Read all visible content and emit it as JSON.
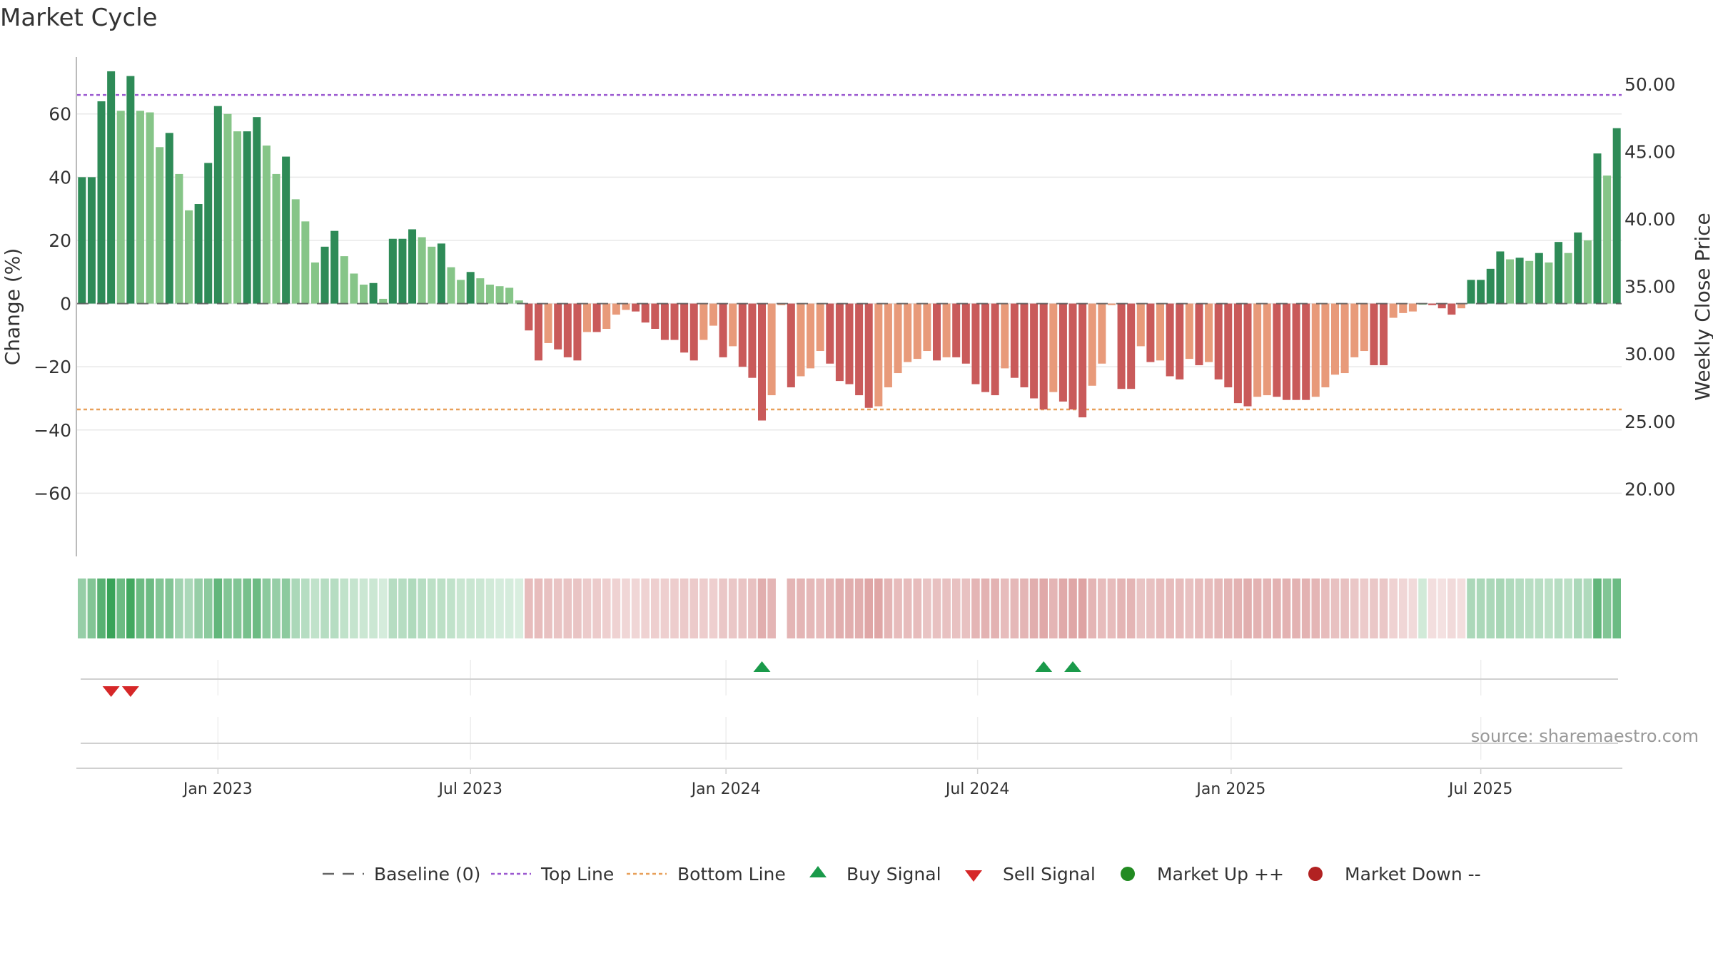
{
  "chart_data": {
    "type": "bar",
    "title": "Market Cycle",
    "ylabel": "Change (%)",
    "y2label": "Weekly Close Price",
    "ylim": [
      -80,
      78
    ],
    "y2lim": [
      15,
      52
    ],
    "yticks": [
      -60,
      -40,
      -20,
      0,
      20,
      40,
      60
    ],
    "y2ticks": [
      20,
      25,
      30,
      35,
      40,
      45,
      50
    ],
    "ytick_labels": [
      "−60",
      "−40",
      "−20",
      "0",
      "20",
      "40",
      "60"
    ],
    "y2tick_labels": [
      "20.00",
      "25.00",
      "30.00",
      "35.00",
      "40.00",
      "45.00",
      "50.00"
    ],
    "xtick_labels": [
      "Jan 2023",
      "Jul 2023",
      "Jan 2024",
      "Jul 2024",
      "Jan 2025",
      "Jul 2025"
    ],
    "xtick_weeks": [
      14,
      40,
      66.3,
      92.2,
      118.3,
      144
    ],
    "top_line": 66,
    "bottom_line": -33.5,
    "values": [
      40,
      40,
      64,
      73.5,
      61,
      72,
      61,
      60.5,
      49.5,
      54,
      41,
      29.5,
      31.5,
      44.5,
      62.5,
      60,
      54.5,
      54.5,
      59,
      50,
      41,
      46.5,
      33,
      26,
      13,
      18,
      23,
      15,
      9.5,
      6,
      6.5,
      1.5,
      20.5,
      20.5,
      23.5,
      21,
      18,
      19,
      11.5,
      7.5,
      10,
      8,
      6,
      5.5,
      5,
      1,
      -8.5,
      -18,
      -12.5,
      -14.5,
      -17,
      -18,
      -9,
      -9,
      -8,
      -3.5,
      -2,
      -2.5,
      -6,
      -8,
      -11.5,
      -11.5,
      -15.5,
      -18,
      -11.5,
      -7,
      -17,
      -13.5,
      -20,
      -23.5,
      -37,
      -29,
      -0.5,
      -26.5,
      -23,
      -20.5,
      -15,
      -19,
      -24.5,
      -25.5,
      -29,
      -33,
      -32.5,
      -26.5,
      -22,
      -18.5,
      -17.5,
      -15,
      -18,
      -17,
      -17,
      -19,
      -25.5,
      -28,
      -29,
      -20.5,
      -23.5,
      -26.5,
      -30,
      -33.5,
      -28,
      -31,
      -33.5,
      -36,
      -26,
      -19,
      -0.5,
      -27,
      -27,
      -13.5,
      -18.5,
      -18,
      -23,
      -24,
      -17.5,
      -19.5,
      -18.5,
      -24,
      -26.5,
      -31.5,
      -32.5,
      -29.5,
      -29,
      -29.5,
      -30.5,
      -30.5,
      -30.5,
      -29.5,
      -26.5,
      -22.5,
      -22,
      -17,
      -15,
      -19.5,
      -19.5,
      -4.5,
      -3,
      -2.5,
      0,
      -0.5,
      -1.5,
      -3.5,
      -1.5,
      7.5,
      7.5,
      11,
      16.5,
      14,
      14.5,
      13.5,
      16,
      13,
      19.5,
      16,
      22.5,
      20,
      47.5,
      40.5,
      55.5
    ],
    "strength_band": [
      0.5,
      0.6,
      0.8,
      0.95,
      0.7,
      0.9,
      0.7,
      0.7,
      0.6,
      0.6,
      0.45,
      0.4,
      0.5,
      0.55,
      0.75,
      0.6,
      0.6,
      0.65,
      0.7,
      0.55,
      0.5,
      0.55,
      0.4,
      0.35,
      0.3,
      0.35,
      0.35,
      0.3,
      0.28,
      0.25,
      0.25,
      0.2,
      0.35,
      0.35,
      0.38,
      0.35,
      0.32,
      0.32,
      0.3,
      0.26,
      0.26,
      0.25,
      0.22,
      0.2,
      0.2,
      0.18,
      0.45,
      0.45,
      0.42,
      0.4,
      0.4,
      0.4,
      0.35,
      0.35,
      0.32,
      0.3,
      0.28,
      0.28,
      0.3,
      0.32,
      0.32,
      0.34,
      0.36,
      0.36,
      0.34,
      0.32,
      0.38,
      0.38,
      0.4,
      0.42,
      0.55,
      0.5,
      null,
      0.5,
      0.5,
      0.48,
      0.45,
      0.5,
      0.55,
      0.55,
      0.55,
      0.6,
      0.6,
      0.5,
      0.45,
      0.45,
      0.45,
      0.4,
      0.42,
      0.42,
      0.42,
      0.42,
      0.5,
      0.52,
      0.52,
      0.45,
      0.48,
      0.5,
      0.55,
      0.58,
      0.5,
      0.58,
      0.6,
      0.62,
      0.5,
      0.45,
      0.45,
      0.5,
      0.5,
      0.4,
      0.42,
      0.45,
      0.45,
      0.45,
      0.42,
      0.45,
      0.45,
      0.48,
      0.5,
      0.52,
      0.55,
      0.52,
      0.5,
      0.52,
      0.52,
      0.52,
      0.52,
      0.5,
      0.45,
      0.42,
      0.42,
      0.38,
      0.35,
      0.38,
      0.38,
      0.3,
      0.28,
      0.25,
      0.22,
      0.22,
      0.2,
      0.25,
      0.22,
      0.4,
      0.4,
      0.4,
      0.42,
      0.38,
      0.36,
      0.34,
      0.34,
      0.32,
      0.35,
      0.32,
      0.4,
      0.38,
      0.75,
      0.6,
      0.7
    ],
    "buy_signals": [
      70,
      99,
      102
    ],
    "sell_signals": [
      3,
      5
    ],
    "legend_placement": "bottom-center",
    "grid": true
  },
  "legend": {
    "baseline": "Baseline (0)",
    "top_line": "Top Line",
    "bottom_line": "Bottom Line",
    "buy_signal": "Buy Signal",
    "sell_signal": "Sell Signal",
    "market_up": "Market Up ++",
    "market_down": "Market Down --"
  },
  "source": "source: sharemaestro.com",
  "colors": {
    "up_dark": "#2e8b57",
    "up_light": "#86c588",
    "down_dark": "#c95a5a",
    "down_light": "#e89a7a",
    "top_line": "#9b59d0",
    "bottom_line": "#e8a05a",
    "buy": "#1a9a4a",
    "sell": "#d62728",
    "market_up": "#228b22",
    "market_down": "#b22222",
    "band_up": "#2e9e4f",
    "band_down": "#c96b6b"
  }
}
